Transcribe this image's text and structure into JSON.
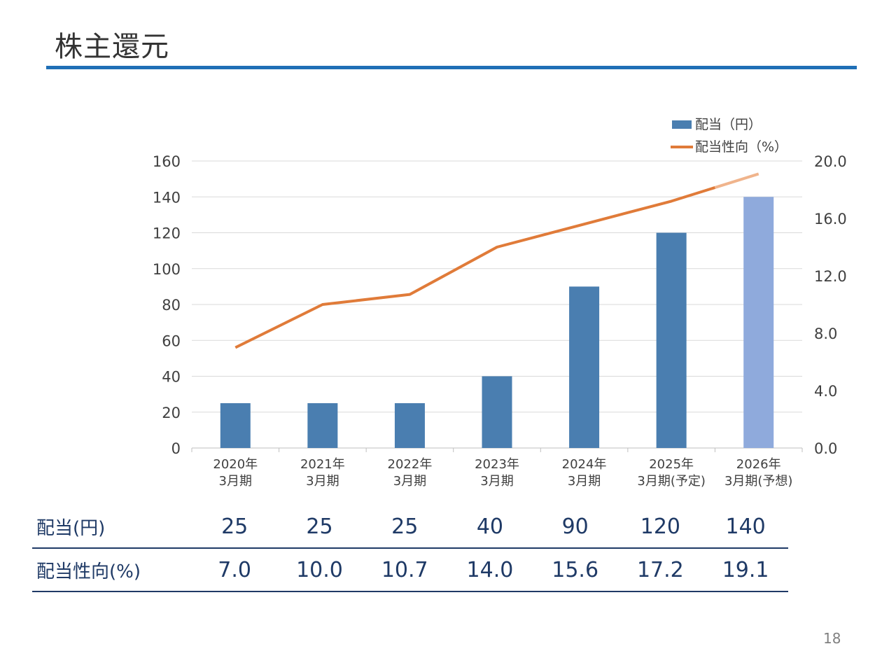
{
  "page": {
    "title": "株主還元",
    "page_number": "18"
  },
  "colors": {
    "bar": "#4a7eb0",
    "bar_forecast": "#8faadc",
    "line": "#e07b39",
    "line_forecast": "#f0b48c",
    "rule": "#1f6fb6",
    "table_text": "#1f3a66"
  },
  "chart_data": {
    "type": "bar",
    "categories": [
      [
        "2020年",
        "3月期"
      ],
      [
        "2021年",
        "3月期"
      ],
      [
        "2022年",
        "3月期"
      ],
      [
        "2023年",
        "3月期"
      ],
      [
        "2024年",
        "3月期"
      ],
      [
        "2025年",
        "3月期(予定)"
      ],
      [
        "2026年",
        "3月期(予想)"
      ]
    ],
    "series": [
      {
        "name": "配当（円）",
        "type": "bar",
        "axis": "left",
        "values": [
          25,
          25,
          25,
          40,
          90,
          120,
          140
        ]
      },
      {
        "name": "配当性向（%）",
        "type": "line",
        "axis": "right",
        "values": [
          7.0,
          10.0,
          10.7,
          14.0,
          15.6,
          17.2,
          19.1
        ]
      }
    ],
    "forecast_index": 6,
    "left_axis": {
      "min": 0,
      "max": 160,
      "step": 20,
      "ticks": [
        "0",
        "20",
        "40",
        "60",
        "80",
        "100",
        "120",
        "140",
        "160"
      ]
    },
    "right_axis": {
      "min": 0,
      "max": 20,
      "step": 4,
      "ticks": [
        "0.0",
        "4.0",
        "8.0",
        "12.0",
        "16.0",
        "20.0"
      ]
    },
    "grid": true,
    "legend_position": "top-right"
  },
  "table": {
    "rows": [
      {
        "label": "配当(円)",
        "values": [
          "25",
          "25",
          "25",
          "40",
          "90",
          "120",
          "140"
        ]
      },
      {
        "label": "配当性向(%)",
        "values": [
          "7.0",
          "10.0",
          "10.7",
          "14.0",
          "15.6",
          "17.2",
          "19.1"
        ]
      }
    ]
  }
}
